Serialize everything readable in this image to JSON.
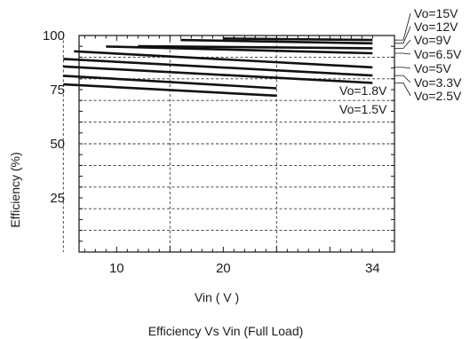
{
  "chart_data": {
    "type": "line",
    "title": "Efficiency  Vs Vin (Full Load)",
    "xlabel": "Vin ( V )",
    "ylabel": "Efficiency (%)",
    "xlim": [
      0,
      34
    ],
    "ylim": [
      0,
      100
    ],
    "x_ticks": [
      {
        "value": 10,
        "label": "10"
      },
      {
        "value": 20,
        "label": "20"
      },
      {
        "value": 34,
        "label": "34"
      }
    ],
    "y_ticks": [
      {
        "value": 25,
        "label": "25"
      },
      {
        "value": 50,
        "label": "50"
      },
      {
        "value": 75,
        "label": "75"
      },
      {
        "value": 100,
        "label": "100"
      }
    ],
    "grid": true,
    "series": [
      {
        "name": "Vo=15V",
        "x": [
          20,
          34
        ],
        "y": [
          98.6,
          97.9
        ]
      },
      {
        "name": "Vo=12V",
        "x": [
          16,
          34
        ],
        "y": [
          97.9,
          96.4
        ]
      },
      {
        "name": "Vo=9V",
        "x": [
          12,
          34
        ],
        "y": [
          95.1,
          94.1
        ]
      },
      {
        "name": "Vo=6.5V",
        "x": [
          9,
          34
        ],
        "y": [
          94.9,
          91.8
        ]
      },
      {
        "name": "Vo=5V",
        "x": [
          6,
          34
        ],
        "y": [
          92.7,
          85.3
        ]
      },
      {
        "name": "Vo=3.3V",
        "x": [
          5,
          34
        ],
        "y": [
          89.2,
          81.5
        ]
      },
      {
        "name": "Vo=2.5V",
        "x": [
          5,
          34
        ],
        "y": [
          85.7,
          78.1
        ]
      },
      {
        "name": "Vo=1.8V",
        "x": [
          5,
          25
        ],
        "y": [
          81.4,
          75.6
        ]
      },
      {
        "name": "Vo=1.5V",
        "x": [
          5,
          25
        ],
        "y": [
          77.4,
          72.2
        ]
      }
    ]
  }
}
